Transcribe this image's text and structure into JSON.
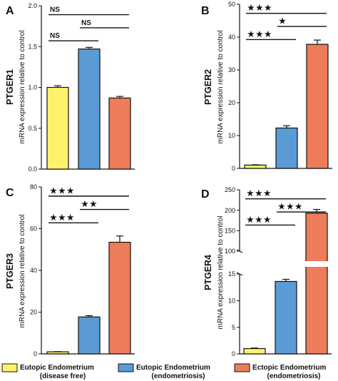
{
  "colors": {
    "yellow": "#FFF26B",
    "blue": "#5B9BD5",
    "orange": "#EE7B59",
    "ink": "#111111"
  },
  "chart_data": [
    {
      "type": "bar",
      "panel": "A",
      "gene": "PTGER1",
      "ylabel": "mRNA expression relative to control",
      "ylim": [
        0,
        2.0
      ],
      "yticks": [
        "0.0",
        "0.5",
        "1.0",
        "1.5",
        "2.0"
      ],
      "categories": [
        "Eutopic Endometrium (disease free)",
        "Eutopic Endometrium (endometriosis)",
        "Ectopic Endometrium (endometriosis)"
      ],
      "values": [
        1.0,
        1.47,
        0.87
      ],
      "errors": [
        0.02,
        0.02,
        0.02
      ],
      "significance": [
        {
          "from": 0,
          "to": 2,
          "label": "NS"
        },
        {
          "from": 1,
          "to": 2,
          "label": "NS"
        },
        {
          "from": 0,
          "to": 1,
          "label": "NS"
        }
      ]
    },
    {
      "type": "bar",
      "panel": "B",
      "gene": "PTGER2",
      "ylabel": "mRNA expression relative to control",
      "ylim": [
        0,
        50
      ],
      "yticks": [
        "0",
        "10",
        "20",
        "30",
        "40",
        "50"
      ],
      "categories": [
        "Eutopic Endometrium (disease free)",
        "Eutopic Endometrium (endometriosis)",
        "Ectopic Endometrium (endometriosis)"
      ],
      "values": [
        1.0,
        12.3,
        37.8
      ],
      "errors": [
        0.1,
        0.7,
        1.3
      ],
      "significance": [
        {
          "from": 0,
          "to": 2,
          "label": "★★★"
        },
        {
          "from": 1,
          "to": 2,
          "label": "★"
        },
        {
          "from": 0,
          "to": 1,
          "label": "★★★"
        }
      ]
    },
    {
      "type": "bar",
      "panel": "C",
      "gene": "PTGER3",
      "ylabel": "mRNA expression relative to control",
      "ylim": [
        0,
        80
      ],
      "yticks": [
        "0",
        "20",
        "40",
        "60",
        "80"
      ],
      "categories": [
        "Eutopic Endometrium (disease free)",
        "Eutopic Endometrium (endometriosis)",
        "Ectopic Endometrium (endometriosis)"
      ],
      "values": [
        1.0,
        17.7,
        53.5
      ],
      "errors": [
        0.1,
        0.6,
        3.0
      ],
      "significance": [
        {
          "from": 0,
          "to": 2,
          "label": "★★★"
        },
        {
          "from": 1,
          "to": 2,
          "label": "★★"
        },
        {
          "from": 0,
          "to": 1,
          "label": "★★★"
        }
      ]
    },
    {
      "type": "bar",
      "panel": "D",
      "gene": "PTGER4",
      "ylabel": "mRNA expression relative to control",
      "broken_axis": {
        "lower": [
          0,
          15
        ],
        "upper": [
          100,
          250
        ]
      },
      "yticks_lower": [
        "0",
        "5",
        "10",
        "15"
      ],
      "yticks_upper": [
        "100",
        "150",
        "200",
        "250"
      ],
      "categories": [
        "Eutopic Endometrium (disease free)",
        "Eutopic Endometrium (endometriosis)",
        "Ectopic Endometrium (endometriosis)"
      ],
      "values": [
        1.0,
        13.6,
        193.0
      ],
      "errors": [
        0.1,
        0.4,
        9.0
      ],
      "significance": [
        {
          "from": 0,
          "to": 2,
          "label": "★★★"
        },
        {
          "from": 1,
          "to": 2,
          "label": "★★★"
        },
        {
          "from": 0,
          "to": 1,
          "label": "★★★"
        }
      ]
    }
  ],
  "legend": [
    {
      "line1": "Eutopic Endometrium",
      "line2": "(disease free)",
      "color": "#FFF26B"
    },
    {
      "line1": "Eutopic Endometrium",
      "line2": "(endometriosis)",
      "color": "#5B9BD5"
    },
    {
      "line1": "Ectopic Endometrium",
      "line2": "(endometriosis)",
      "color": "#EE7B59"
    }
  ]
}
